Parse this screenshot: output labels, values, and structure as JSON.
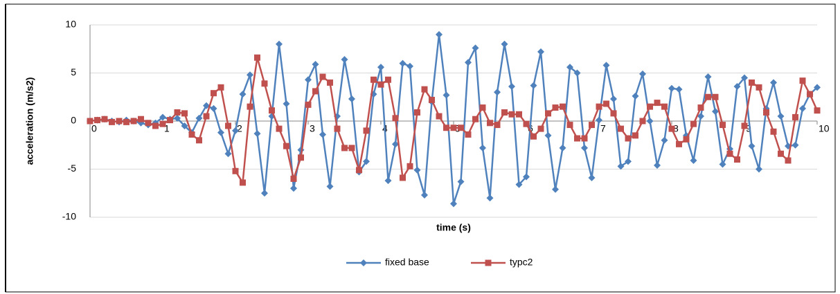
{
  "chart_data": {
    "type": "line",
    "x_label": "time (s)",
    "y_label": "acceleration (m/s2)",
    "x": [
      0,
      0.1,
      0.2,
      0.3,
      0.4,
      0.5,
      0.6,
      0.7,
      0.8,
      0.9,
      1,
      1.1,
      1.2,
      1.3,
      1.4,
      1.5,
      1.6,
      1.7,
      1.8,
      1.9,
      2,
      2.1,
      2.2,
      2.3,
      2.4,
      2.5,
      2.6,
      2.7,
      2.8,
      2.9,
      3,
      3.1,
      3.2,
      3.3,
      3.4,
      3.5,
      3.6,
      3.7,
      3.8,
      3.9,
      4,
      4.1,
      4.2,
      4.3,
      4.4,
      4.5,
      4.6,
      4.7,
      4.8,
      4.9,
      5,
      5.1,
      5.2,
      5.3,
      5.4,
      5.5,
      5.6,
      5.7,
      5.8,
      5.9,
      6,
      6.1,
      6.2,
      6.3,
      6.4,
      6.5,
      6.6,
      6.7,
      6.8,
      6.9,
      7,
      7.1,
      7.2,
      7.3,
      7.4,
      7.5,
      7.6,
      7.7,
      7.8,
      7.9,
      8,
      8.1,
      8.2,
      8.3,
      8.4,
      8.5,
      8.6,
      8.7,
      8.8,
      8.9,
      9,
      9.1,
      9.2,
      9.3,
      9.4,
      9.5,
      9.6,
      9.7,
      9.8,
      9.9,
      10
    ],
    "series": [
      {
        "name": "fixed base",
        "color": "#4f81bd",
        "marker": "diamond",
        "values": [
          0,
          0.1,
          0.2,
          0,
          -0.1,
          0.1,
          0,
          -0.2,
          -0.4,
          -0.2,
          0.4,
          0.2,
          0.3,
          -0.5,
          -1.2,
          0.3,
          1.6,
          1.3,
          -1.2,
          -3.4,
          -1.0,
          2.8,
          4.8,
          -1.3,
          -7.5,
          0.5,
          8.0,
          1.8,
          -7.0,
          -3.0,
          4.3,
          5.9,
          -1.4,
          -6.8,
          0.5,
          6.4,
          2.3,
          -5.3,
          -4.2,
          2.8,
          5.6,
          -6.2,
          -2.4,
          6.0,
          5.7,
          -5.1,
          -7.7,
          2.0,
          9.0,
          2.7,
          -8.6,
          -6.3,
          6.1,
          7.6,
          -2.8,
          -8.0,
          3.0,
          8.0,
          3.6,
          -6.6,
          -5.8,
          3.7,
          7.2,
          -1.5,
          -7.1,
          -2.8,
          5.6,
          5.0,
          -2.8,
          -5.9,
          0.1,
          5.8,
          2.3,
          -4.7,
          -4.2,
          2.6,
          4.9,
          0,
          -4.6,
          -2.0,
          3.4,
          3.3,
          -1.5,
          -4.1,
          0.5,
          4.6,
          1.0,
          -4.5,
          -2.9,
          3.6,
          4.5,
          -2.6,
          -5.0,
          1.3,
          4.0,
          0.5,
          -2.6,
          -2.5,
          1.3,
          2.8,
          3.5
        ]
      },
      {
        "name": "typc2",
        "color": "#c0504d",
        "marker": "square",
        "values": [
          0,
          0.1,
          0.2,
          -0.1,
          0,
          -0.1,
          0,
          0.2,
          -0.2,
          -0.5,
          -0.3,
          0.1,
          0.9,
          0.8,
          -1.4,
          -2.0,
          0.5,
          2.9,
          3.5,
          -0.5,
          -5.2,
          -6.4,
          1.5,
          6.6,
          3.9,
          1.1,
          -0.8,
          -2.6,
          -6.0,
          -3.8,
          1.7,
          3.1,
          4.6,
          4.0,
          -0.8,
          -2.8,
          -2.8,
          -5.1,
          -1.0,
          4.3,
          3.8,
          4.3,
          0.3,
          -5.9,
          -4.7,
          0.9,
          3.3,
          2.2,
          0.5,
          -0.7,
          -0.7,
          -0.7,
          -1.4,
          0.2,
          1.4,
          -0.2,
          -0.4,
          0.9,
          0.7,
          0.7,
          -0.3,
          -1.6,
          -0.8,
          0.8,
          1.4,
          1.5,
          -0.4,
          -1.8,
          -1.8,
          -0.4,
          1.5,
          1.8,
          0.8,
          -0.8,
          -1.8,
          -1.5,
          0,
          1.5,
          1.9,
          1.5,
          -0.8,
          -2.4,
          -1.9,
          -0.3,
          1.4,
          2.5,
          2.5,
          -0.4,
          -3.4,
          -4.0,
          -0.5,
          4.0,
          3.5,
          0.9,
          -1.1,
          -3.4,
          -4.1,
          0.4,
          4.2,
          2.8,
          1.1
        ]
      }
    ],
    "xlim": [
      0,
      10
    ],
    "xticks": [
      0,
      1,
      2,
      3,
      4,
      5,
      6,
      7,
      8,
      9,
      10
    ],
    "ylim": [
      -10,
      10
    ],
    "yticks": [
      -10,
      -5,
      0,
      5,
      10
    ],
    "grid": true,
    "legend": "bottom"
  }
}
